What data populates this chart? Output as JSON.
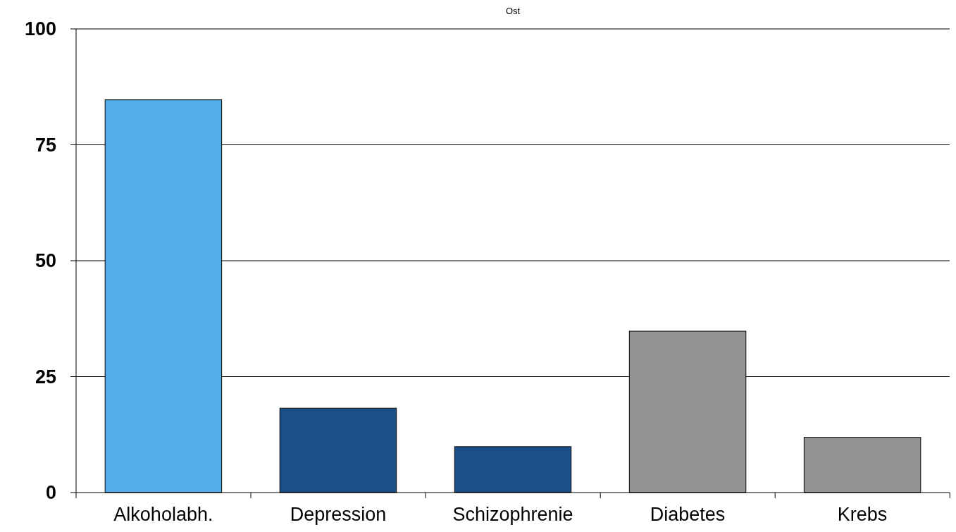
{
  "chart_data": {
    "type": "bar",
    "title": "Ost",
    "categories": [
      "Alkoholabh.",
      "Depression",
      "Schizophrenie",
      "Diabetes",
      "Krebs"
    ],
    "values": [
      84.7,
      18.2,
      9.9,
      34.8,
      11.9
    ],
    "colors": [
      "#53aee8",
      "#1b4f87",
      "#1b4f87",
      "#939393",
      "#939393"
    ],
    "ylim": [
      0,
      100
    ],
    "yticks": [
      0,
      25,
      50,
      75,
      100
    ],
    "grid": "y"
  }
}
